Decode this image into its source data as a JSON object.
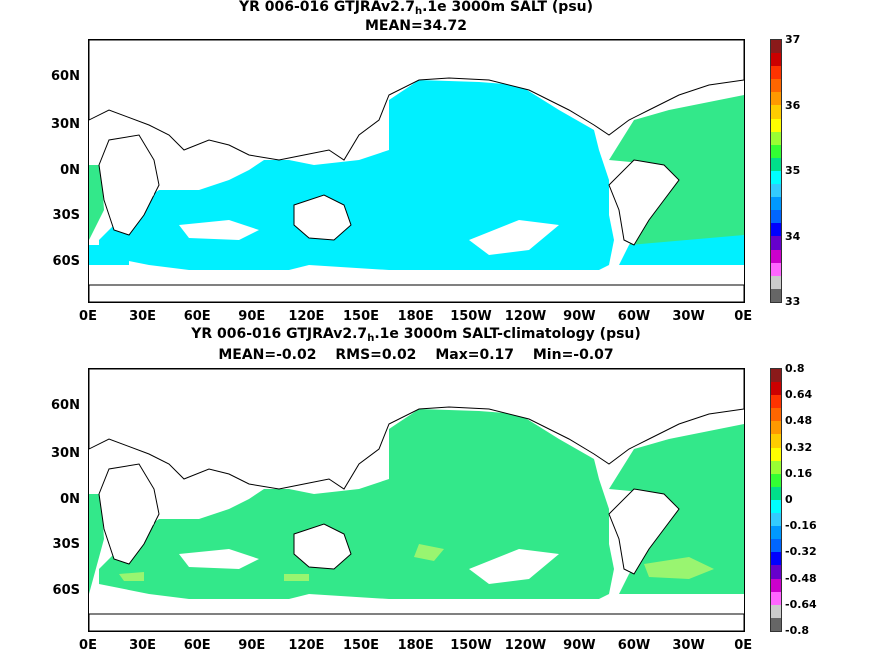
{
  "panel_top": {
    "title_prefix": "YR 006-016 GTJRAv2.7",
    "title_sub": "h",
    "title_suffix": ".1e 3000m SALT (psu)",
    "stats": [
      "MEAN=34.72"
    ],
    "colorbar_ticks": [
      "37",
      "36",
      "35",
      "34",
      "33"
    ],
    "colorbar_colors": [
      "#8b1a1a",
      "#cc0000",
      "#ff3300",
      "#ff6600",
      "#ff9900",
      "#ffcc00",
      "#ffff00",
      "#99ff33",
      "#33ff33",
      "#00e08a",
      "#00ffff",
      "#33ccff",
      "#0099ff",
      "#0066ff",
      "#0000ff",
      "#6600cc",
      "#cc00cc",
      "#ff66ff",
      "#cccccc",
      "#666666"
    ],
    "ocean_color": "#00f0ff"
  },
  "panel_bottom": {
    "title_prefix": "YR 006-016 GTJRAv2.7",
    "title_sub": "h",
    "title_suffix": ".1e 3000m SALT-climatology (psu)",
    "stats": [
      "MEAN=-0.02",
      "RMS=0.02",
      "Max=0.17",
      "Min=-0.07"
    ],
    "colorbar_ticks": [
      "0.8",
      "0.64",
      "0.48",
      "0.32",
      "0.16",
      "0",
      "-0.16",
      "-0.32",
      "-0.48",
      "-0.64",
      "-0.8"
    ],
    "colorbar_colors": [
      "#8b1a1a",
      "#cc0000",
      "#ff3300",
      "#ff6600",
      "#ff9900",
      "#ffcc00",
      "#ffff00",
      "#99ff33",
      "#33ff33",
      "#00e08a",
      "#00ffff",
      "#33ccff",
      "#0099ff",
      "#0066ff",
      "#0000ff",
      "#6600cc",
      "#cc00cc",
      "#ff66ff",
      "#cccccc",
      "#666666"
    ],
    "ocean_color": "#33e88a",
    "patch_color": "#99f570"
  },
  "lat_labels": [
    "60N",
    "30N",
    "0N",
    "30S",
    "60S"
  ],
  "lon_labels": [
    "0E",
    "30E",
    "60E",
    "90E",
    "120E",
    "150E",
    "180E",
    "150W",
    "120W",
    "90W",
    "60W",
    "30W",
    "0E"
  ]
}
